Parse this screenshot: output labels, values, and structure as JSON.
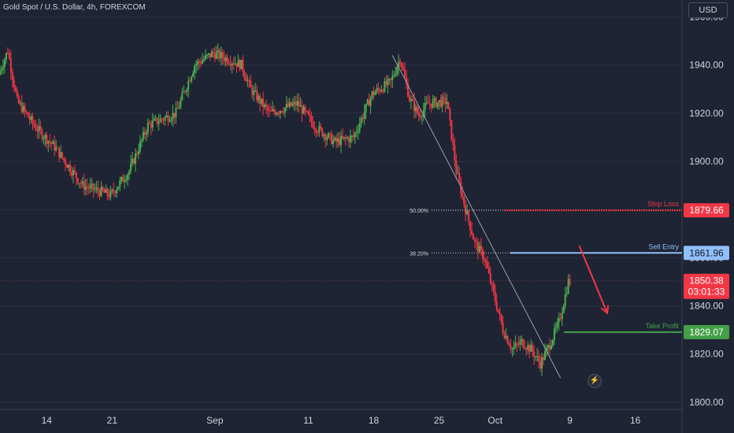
{
  "header": {
    "symbol_title": "Gold Spot / U.S. Dollar, 4h, FOREXCOM"
  },
  "currency": "USD",
  "chart_data": {
    "type": "candlestick",
    "y_axis": {
      "ticks": [
        1800,
        1820,
        1840,
        1860,
        1880,
        1900,
        1920,
        1940,
        1960
      ],
      "ylim": [
        1797,
        1967
      ]
    },
    "x_axis": {
      "ticks": [
        "14",
        "21",
        "Sep",
        "11",
        "18",
        "25",
        "Oct",
        "9",
        "16"
      ],
      "range": [
        "2023-08-09",
        "2023-10-21"
      ]
    },
    "price_path": [
      {
        "x": "2023-08-09",
        "y": 1936
      },
      {
        "x": "2023-08-10",
        "y": 1946
      },
      {
        "x": "2023-08-11",
        "y": 1925
      },
      {
        "x": "2023-08-13",
        "y": 1914
      },
      {
        "x": "2023-08-15",
        "y": 1906
      },
      {
        "x": "2023-08-18",
        "y": 1890
      },
      {
        "x": "2023-08-21",
        "y": 1886
      },
      {
        "x": "2023-08-23",
        "y": 1896
      },
      {
        "x": "2023-08-25",
        "y": 1915
      },
      {
        "x": "2023-08-28",
        "y": 1920
      },
      {
        "x": "2023-08-30",
        "y": 1940
      },
      {
        "x": "2023-09-01",
        "y": 1945
      },
      {
        "x": "2023-09-04",
        "y": 1940
      },
      {
        "x": "2023-09-05",
        "y": 1930
      },
      {
        "x": "2023-09-07",
        "y": 1920
      },
      {
        "x": "2023-09-10",
        "y": 1924
      },
      {
        "x": "2023-09-12",
        "y": 1914
      },
      {
        "x": "2023-09-14",
        "y": 1908
      },
      {
        "x": "2023-09-16",
        "y": 1910
      },
      {
        "x": "2023-09-18",
        "y": 1928
      },
      {
        "x": "2023-09-20",
        "y": 1933
      },
      {
        "x": "2023-09-21",
        "y": 1943
      },
      {
        "x": "2023-09-22",
        "y": 1926
      },
      {
        "x": "2023-09-23",
        "y": 1919
      },
      {
        "x": "2023-09-24",
        "y": 1924
      },
      {
        "x": "2023-09-26",
        "y": 1925
      },
      {
        "x": "2023-09-27",
        "y": 1896
      },
      {
        "x": "2023-09-28",
        "y": 1880
      },
      {
        "x": "2023-09-29",
        "y": 1866
      },
      {
        "x": "2023-09-30",
        "y": 1860
      },
      {
        "x": "2023-10-01",
        "y": 1845
      },
      {
        "x": "2023-10-02",
        "y": 1830
      },
      {
        "x": "2023-10-03",
        "y": 1822
      },
      {
        "x": "2023-10-04",
        "y": 1825
      },
      {
        "x": "2023-10-05",
        "y": 1822
      },
      {
        "x": "2023-10-06",
        "y": 1816
      },
      {
        "x": "2023-10-07",
        "y": 1824
      },
      {
        "x": "2023-10-08",
        "y": 1833
      },
      {
        "x": "2023-10-09",
        "y": 1850
      }
    ],
    "fibonacci": [
      {
        "label": "50.00%",
        "value": 1879.66
      },
      {
        "label": "38.20%",
        "value": 1861.96
      }
    ],
    "levels": [
      {
        "name": "Stop Loss",
        "value": 1879.66,
        "value_label": "1879.66",
        "color": "#f23645"
      },
      {
        "name": "Sell Entry",
        "value": 1861.96,
        "value_label": "1861.96",
        "color": "#90bff9"
      },
      {
        "name": "Take Profit",
        "value": 1829.07,
        "value_label": "1829.07",
        "color": "#43a047"
      }
    ],
    "current_price": {
      "value": 1850.38,
      "value_label": "1850.38",
      "countdown": "03:01:33",
      "color": "#f23645"
    },
    "trendline": {
      "from": {
        "x": "2023-09-20",
        "y": 1944
      },
      "to": {
        "x": "2023-10-08",
        "y": 1810
      }
    },
    "projection_arrow": {
      "from": {
        "x": "2023-10-10",
        "y": 1865
      },
      "to": {
        "x": "2023-10-13",
        "y": 1837
      },
      "color": "#f23645"
    },
    "colors": {
      "up": "#4caf50",
      "down": "#f23645",
      "grid": "#2a3040",
      "text": "#d1d4dc"
    }
  }
}
